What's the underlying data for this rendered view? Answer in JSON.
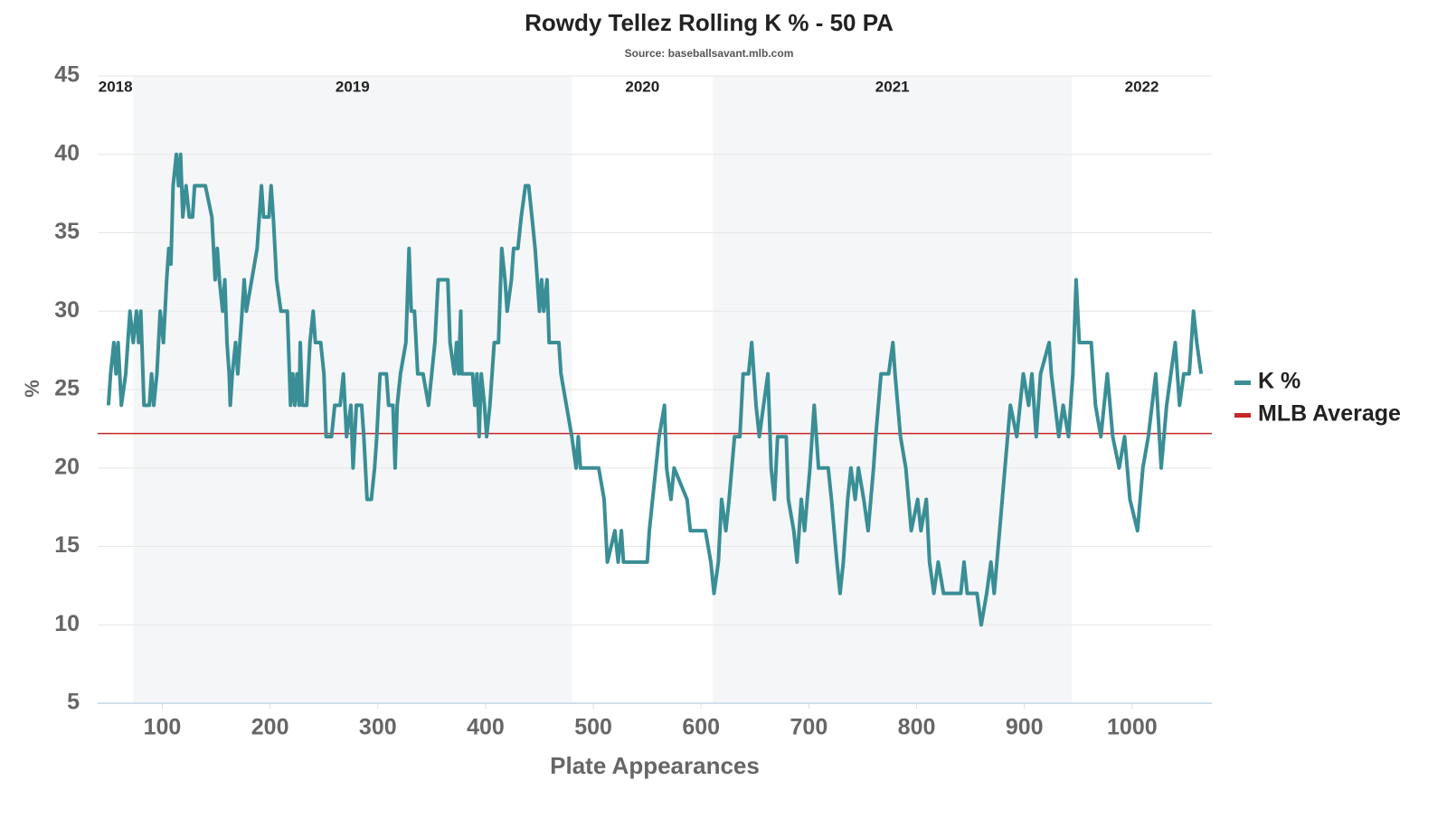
{
  "chart_data": {
    "type": "line",
    "title": "Rowdy Tellez Rolling K % - 50 PA",
    "subtitle": "Source: baseballsavant.mlb.com",
    "x_label": "Plate Appearances",
    "y_label": "%",
    "xlim": [
      40,
      1074
    ],
    "ylim": [
      5,
      45
    ],
    "xticks": [
      100,
      200,
      300,
      400,
      500,
      600,
      700,
      800,
      900,
      1000
    ],
    "yticks": [
      5,
      10,
      15,
      20,
      25,
      30,
      35,
      40,
      45
    ],
    "grid": true,
    "legend": "right",
    "seasons": [
      {
        "label": "2018",
        "start": 40,
        "end": 73,
        "shaded": false
      },
      {
        "label": "2019",
        "start": 73,
        "end": 480,
        "shaded": true
      },
      {
        "label": "2020",
        "start": 480,
        "end": 611,
        "shaded": false
      },
      {
        "label": "2021",
        "start": 611,
        "end": 944,
        "shaded": true
      },
      {
        "label": "2022",
        "start": 944,
        "end": 1074,
        "shaded": false
      }
    ],
    "series": [
      {
        "name": "K %",
        "color": "#3a8e96",
        "x": [
          50,
          52,
          55,
          57,
          59,
          62,
          66,
          70,
          73,
          76,
          78,
          80,
          83,
          88,
          90,
          92,
          95,
          98,
          101,
          104,
          106,
          108,
          110,
          113,
          115,
          117,
          119,
          122,
          125,
          128,
          130,
          140,
          146,
          149,
          151,
          153,
          156,
          158,
          160,
          162,
          163,
          165,
          168,
          170,
          174,
          176,
          178,
          183,
          188,
          192,
          194,
          199,
          201,
          203,
          206,
          210,
          216,
          219,
          221,
          223,
          225,
          227,
          228,
          230,
          234,
          237,
          240,
          242,
          247,
          250,
          252,
          257,
          260,
          265,
          268,
          271,
          275,
          277,
          280,
          285,
          287,
          290,
          294,
          297,
          299,
          302,
          308,
          310,
          314,
          316,
          318,
          321,
          326,
          329,
          331,
          334,
          337,
          342,
          347,
          350,
          353,
          356,
          365,
          367,
          371,
          373,
          375,
          377,
          378,
          383,
          388,
          390,
          392,
          394,
          396,
          399,
          401,
          404,
          408,
          412,
          415,
          418,
          420,
          424,
          426,
          430,
          433,
          437,
          440,
          443,
          446,
          448,
          450,
          452,
          454,
          457,
          459,
          464,
          468,
          470,
          475,
          480,
          484,
          486,
          488,
          505,
          510,
          513,
          520,
          523,
          526,
          528,
          550,
          552,
          555,
          561,
          566,
          568,
          572,
          575,
          587,
          590,
          604,
          609,
          612,
          616,
          619,
          623,
          626,
          631,
          636,
          639,
          644,
          647,
          651,
          654,
          658,
          662,
          665,
          668,
          671,
          679,
          681,
          686,
          689,
          693,
          696,
          701,
          705,
          709,
          718,
          721,
          726,
          729,
          732,
          736,
          739,
          743,
          746,
          751,
          755,
          760,
          762,
          767,
          774,
          778,
          780,
          785,
          790,
          795,
          801,
          804,
          809,
          812,
          816,
          820,
          825,
          841,
          844,
          847,
          856,
          860,
          865,
          869,
          872,
          877,
          882,
          887,
          893,
          899,
          904,
          907,
          911,
          915,
          923,
          925,
          932,
          936,
          941,
          945,
          948,
          951,
          962,
          966,
          971,
          977,
          982,
          988,
          993,
          998,
          1005,
          1010,
          1015,
          1022,
          1027,
          1032,
          1036,
          1040,
          1044,
          1048,
          1053,
          1057,
          1060,
          1064
        ],
        "values": [
          24,
          26,
          28,
          26,
          28,
          24,
          26,
          30,
          28,
          30,
          28,
          30,
          24,
          24,
          26,
          24,
          26,
          30,
          28,
          32,
          34,
          33,
          38,
          40,
          38,
          40,
          36,
          38,
          36,
          36,
          38,
          38,
          36,
          32,
          34,
          32,
          30,
          32,
          28,
          26,
          24,
          26,
          28,
          26,
          30,
          32,
          30,
          32,
          34,
          38,
          36,
          36,
          38,
          36,
          32,
          30,
          30,
          24,
          26,
          24,
          26,
          24,
          28,
          24,
          24,
          28,
          30,
          28,
          28,
          26,
          22,
          22,
          24,
          24,
          26,
          22,
          24,
          20,
          24,
          24,
          22,
          18,
          18,
          20,
          22,
          26,
          26,
          24,
          24,
          20,
          24,
          26,
          28,
          34,
          30,
          30,
          26,
          26,
          24,
          26,
          28,
          32,
          32,
          28,
          26,
          28,
          26,
          30,
          26,
          26,
          26,
          24,
          26,
          22,
          26,
          24,
          22,
          24,
          28,
          28,
          34,
          32,
          30,
          32,
          34,
          34,
          36,
          38,
          38,
          36,
          34,
          32,
          30,
          32,
          30,
          32,
          28,
          28,
          28,
          26,
          24,
          22,
          20,
          22,
          20,
          20,
          18,
          14,
          16,
          14,
          16,
          14,
          14,
          16,
          18,
          22,
          24,
          20,
          18,
          20,
          18,
          16,
          16,
          14,
          12,
          14,
          18,
          16,
          18,
          22,
          22,
          26,
          26,
          28,
          24,
          22,
          24,
          26,
          20,
          18,
          22,
          22,
          18,
          16,
          14,
          18,
          16,
          20,
          24,
          20,
          20,
          18,
          14,
          12,
          14,
          18,
          20,
          18,
          20,
          18,
          16,
          20,
          22,
          26,
          26,
          28,
          26,
          22,
          20,
          16,
          18,
          16,
          18,
          14,
          12,
          14,
          12,
          12,
          14,
          12,
          12,
          10,
          12,
          14,
          12,
          16,
          20,
          24,
          22,
          26,
          24,
          26,
          22,
          26,
          28,
          26,
          22,
          24,
          22,
          26,
          32,
          28,
          28,
          24,
          22,
          26,
          22,
          20,
          22,
          18,
          16,
          20,
          22,
          26,
          20,
          24,
          26,
          28,
          24,
          26,
          26,
          30,
          28,
          26
        ]
      }
    ],
    "reference_lines": [
      {
        "name": "MLB Average",
        "value": 22.2,
        "color": "#c62828"
      }
    ]
  }
}
